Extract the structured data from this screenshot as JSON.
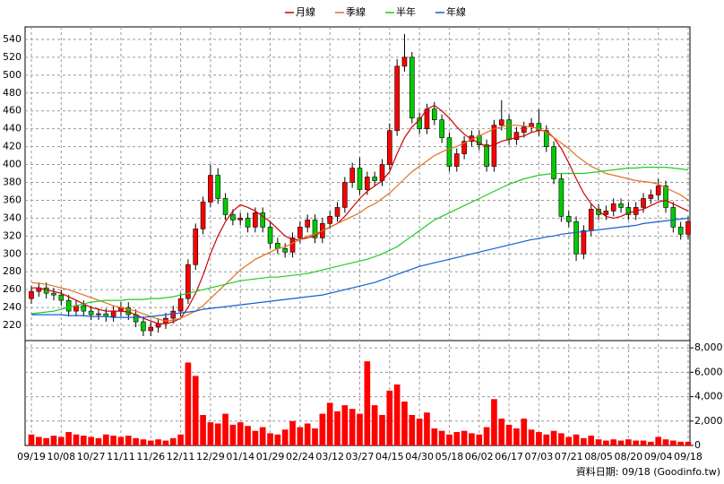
{
  "chart_data": {
    "type": "candlestick",
    "footer": "資料日期: 09/18 (Goodinfo.tw)",
    "categories": [
      "09/19",
      null,
      null,
      null,
      "10/08",
      null,
      null,
      null,
      "10/27",
      null,
      null,
      null,
      "11/11",
      null,
      null,
      null,
      "11/26",
      null,
      null,
      null,
      "12/11",
      null,
      null,
      null,
      "12/29",
      null,
      null,
      null,
      "01/14",
      null,
      null,
      null,
      "01/29",
      null,
      null,
      null,
      "02/24",
      null,
      null,
      null,
      "03/12",
      null,
      null,
      null,
      "03/27",
      null,
      null,
      null,
      "04/15",
      null,
      null,
      null,
      "04/30",
      null,
      null,
      null,
      "05/18",
      null,
      null,
      null,
      "06/02",
      null,
      null,
      null,
      "06/17",
      null,
      null,
      null,
      "07/03",
      null,
      null,
      null,
      "07/21",
      null,
      null,
      null,
      "08/05",
      null,
      null,
      null,
      "08/20",
      null,
      null,
      null,
      "09/04",
      null,
      null,
      null,
      "09/18"
    ],
    "candles": {
      "up_color": "#ff0000",
      "down_color": "#00cc00",
      "open": [
        250,
        258,
        262,
        256,
        254,
        248,
        236,
        242,
        236,
        232,
        233,
        230,
        236,
        240,
        232,
        224,
        214,
        218,
        222,
        228,
        236,
        250,
        288,
        328,
        358,
        388,
        362,
        344,
        338,
        340,
        330,
        346,
        330,
        312,
        306,
        302,
        318,
        330,
        338,
        318,
        334,
        342,
        352,
        380,
        396,
        372,
        386,
        382,
        400,
        438,
        510,
        520,
        452,
        440,
        462,
        450,
        430,
        398,
        412,
        426,
        432,
        422,
        398,
        444,
        450,
        428,
        436,
        442,
        446,
        438,
        420,
        384,
        342,
        336,
        300,
        326,
        350,
        344,
        348,
        356,
        352,
        344,
        352,
        362,
        366,
        376,
        352,
        330,
        322
      ],
      "high": [
        264,
        268,
        268,
        262,
        260,
        254,
        248,
        248,
        242,
        239,
        239,
        242,
        246,
        246,
        238,
        230,
        224,
        228,
        234,
        242,
        256,
        294,
        334,
        364,
        400,
        396,
        368,
        350,
        346,
        346,
        352,
        352,
        336,
        318,
        312,
        324,
        336,
        344,
        344,
        340,
        348,
        358,
        386,
        402,
        408,
        392,
        392,
        406,
        446,
        518,
        546,
        526,
        458,
        468,
        470,
        456,
        436,
        418,
        432,
        438,
        438,
        428,
        450,
        472,
        456,
        442,
        448,
        452,
        462,
        444,
        426,
        390,
        348,
        342,
        332,
        356,
        356,
        354,
        362,
        362,
        358,
        358,
        368,
        372,
        384,
        382,
        358,
        336,
        342
      ],
      "low": [
        244,
        252,
        250,
        248,
        242,
        230,
        230,
        230,
        226,
        226,
        224,
        224,
        230,
        226,
        218,
        208,
        208,
        212,
        216,
        222,
        230,
        244,
        282,
        322,
        352,
        356,
        338,
        332,
        332,
        324,
        324,
        324,
        306,
        300,
        296,
        296,
        312,
        324,
        312,
        312,
        328,
        336,
        346,
        374,
        366,
        366,
        376,
        376,
        394,
        432,
        504,
        446,
        434,
        434,
        444,
        424,
        392,
        392,
        406,
        420,
        416,
        392,
        392,
        438,
        422,
        422,
        430,
        436,
        432,
        414,
        378,
        336,
        330,
        292,
        294,
        320,
        338,
        338,
        342,
        346,
        338,
        338,
        346,
        356,
        360,
        346,
        324,
        316,
        316
      ],
      "close": [
        258,
        262,
        256,
        254,
        248,
        236,
        242,
        236,
        232,
        233,
        230,
        236,
        240,
        232,
        224,
        214,
        218,
        222,
        228,
        236,
        250,
        288,
        328,
        358,
        388,
        362,
        344,
        338,
        340,
        330,
        346,
        330,
        312,
        306,
        302,
        318,
        330,
        338,
        318,
        334,
        342,
        352,
        380,
        396,
        372,
        386,
        382,
        400,
        438,
        510,
        520,
        452,
        440,
        462,
        450,
        430,
        398,
        412,
        426,
        432,
        422,
        398,
        444,
        450,
        428,
        436,
        442,
        446,
        438,
        420,
        384,
        342,
        336,
        300,
        326,
        350,
        344,
        348,
        356,
        352,
        344,
        352,
        362,
        366,
        376,
        352,
        330,
        322,
        336
      ]
    },
    "series": [
      {
        "name": "月線",
        "color": "#cc0000",
        "values": [
          262,
          262,
          260,
          258,
          256,
          252,
          248,
          244,
          240,
          238,
          236,
          236,
          236,
          235,
          232,
          228,
          225,
          222,
          222,
          224,
          228,
          240,
          256,
          276,
          300,
          320,
          336,
          348,
          355,
          352,
          348,
          342,
          336,
          328,
          320,
          316,
          316,
          318,
          320,
          326,
          330,
          334,
          342,
          352,
          362,
          370,
          376,
          382,
          392,
          412,
          430,
          442,
          450,
          462,
          466,
          460,
          452,
          442,
          434,
          428,
          424,
          420,
          422,
          426,
          428,
          430,
          432,
          436,
          438,
          438,
          430,
          418,
          402,
          384,
          368,
          356,
          348,
          342,
          340,
          342,
          346,
          348,
          350,
          354,
          358,
          360,
          356,
          352,
          348
        ]
      },
      {
        "name": "季線",
        "color": "#e07020",
        "values": [
          268,
          267,
          266,
          264,
          262,
          260,
          257,
          254,
          251,
          248,
          245,
          242,
          240,
          238,
          236,
          233,
          230,
          227,
          225,
          226,
          228,
          232,
          236,
          242,
          250,
          258,
          266,
          274,
          282,
          288,
          294,
          298,
          302,
          306,
          308,
          312,
          316,
          320,
          322,
          326,
          330,
          334,
          338,
          342,
          346,
          352,
          356,
          362,
          368,
          376,
          384,
          392,
          398,
          404,
          410,
          414,
          418,
          420,
          424,
          428,
          432,
          436,
          440,
          442,
          444,
          444,
          443,
          442,
          440,
          436,
          430,
          424,
          418,
          410,
          404,
          398,
          394,
          390,
          388,
          386,
          384,
          382,
          381,
          380,
          378,
          374,
          370,
          366,
          360
        ]
      },
      {
        "name": "半年",
        "color": "#22cc22",
        "values": [
          233,
          234,
          235,
          236,
          238,
          240,
          242,
          244,
          246,
          247,
          248,
          248,
          248,
          249,
          249,
          249,
          250,
          250,
          251,
          252,
          254,
          256,
          258,
          260,
          262,
          264,
          266,
          268,
          270,
          271,
          272,
          273,
          274,
          274,
          275,
          276,
          277,
          278,
          280,
          282,
          284,
          286,
          288,
          290,
          292,
          294,
          297,
          300,
          304,
          308,
          314,
          320,
          326,
          332,
          338,
          342,
          346,
          350,
          354,
          358,
          362,
          366,
          370,
          374,
          378,
          381,
          384,
          386,
          388,
          389,
          390,
          390,
          390,
          390,
          390,
          391,
          392,
          393,
          394,
          395,
          396,
          396,
          397,
          397,
          397,
          397,
          396,
          395,
          394
        ]
      },
      {
        "name": "年線",
        "color": "#1060d0",
        "values": [
          232,
          232,
          232,
          232,
          232,
          231,
          231,
          231,
          230,
          230,
          230,
          229,
          229,
          229,
          229,
          229,
          230,
          231,
          232,
          233,
          234,
          235,
          236,
          238,
          239,
          240,
          241,
          242,
          243,
          244,
          245,
          246,
          247,
          248,
          249,
          250,
          251,
          252,
          253,
          254,
          256,
          258,
          260,
          262,
          264,
          266,
          268,
          271,
          274,
          277,
          280,
          283,
          286,
          288,
          290,
          292,
          294,
          296,
          298,
          300,
          302,
          304,
          306,
          308,
          310,
          312,
          314,
          316,
          317,
          319,
          320,
          322,
          323,
          324,
          325,
          326,
          327,
          328,
          329,
          330,
          331,
          332,
          334,
          335,
          336,
          337,
          338,
          339,
          340
        ]
      }
    ],
    "volume": {
      "axis": "y2",
      "color": "#ff0000",
      "values": [
        900,
        700,
        600,
        800,
        700,
        1100,
        900,
        800,
        700,
        600,
        900,
        800,
        700,
        800,
        600,
        500,
        400,
        500,
        400,
        600,
        900,
        6800,
        5700,
        2500,
        1900,
        1800,
        2600,
        1700,
        1900,
        1600,
        1200,
        1500,
        1000,
        900,
        1300,
        2000,
        1500,
        1800,
        1400,
        2600,
        3500,
        2800,
        3300,
        3000,
        2600,
        6900,
        3300,
        2500,
        4500,
        5000,
        3600,
        2500,
        2200,
        2700,
        1400,
        1200,
        900,
        1100,
        1200,
        1000,
        900,
        1500,
        3800,
        2200,
        1700,
        1400,
        2200,
        1300,
        1100,
        900,
        1200,
        1000,
        700,
        900,
        600,
        800,
        500,
        400,
        500,
        400,
        500,
        400,
        400,
        300,
        700,
        500,
        400,
        300,
        300
      ]
    },
    "ylim": [
      203,
      554
    ],
    "yticks": [
      220,
      240,
      260,
      280,
      300,
      320,
      340,
      360,
      380,
      400,
      420,
      440,
      460,
      480,
      500,
      520,
      540
    ],
    "y2lim": [
      0,
      8600
    ],
    "y2ticks": [
      0,
      {
        "value": 2000,
        "label": "2,000"
      },
      {
        "value": 4000,
        "label": "4,000"
      },
      {
        "value": 6000,
        "label": "6,000"
      },
      {
        "value": 8000,
        "label": "8,000"
      }
    ],
    "grid": true
  }
}
